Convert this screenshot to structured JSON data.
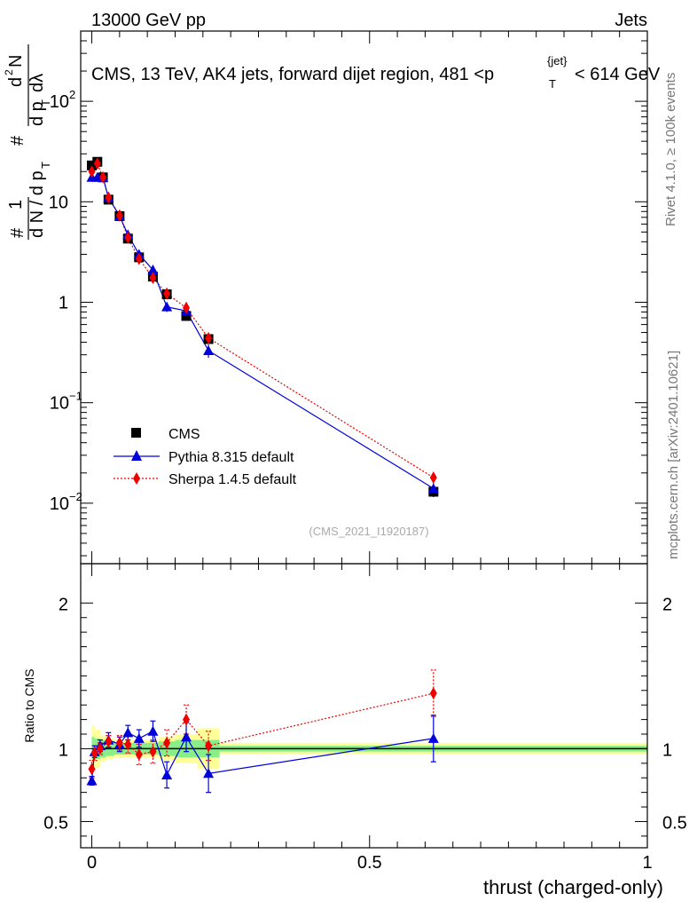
{
  "header": {
    "energy_label": "13000 GeV pp",
    "category_label": "Jets",
    "title_main": "CMS, 13 TeV, AK4 jets, forward dijet region, 481 <p",
    "title_sup": "{jet}",
    "title_sub": "T",
    "title_end": "< 614 GeV",
    "side_label_top": "Rivet 4.1.0, ≥ 100k events",
    "side_label_bottom": "mcplots.cern.ch [arXiv:2401.10621]",
    "analysis_id": "(CMS_2021_I1920187)"
  },
  "colors": {
    "cms": "#000000",
    "pythia": "#0000dd",
    "sherpa": "#ee0000",
    "band_inner": "#88ee88",
    "band_outer": "#ffff99"
  },
  "chart_data": [
    {
      "type": "scatter",
      "title": "CMS, 13 TeV, AK4 jets, forward dijet region, 481 < pT{jet} < 614 GeV",
      "ylabel": "1/dN/dpT # d2N/dpT dlambda",
      "ylabel_parts": [
        "#",
        "1",
        "d N / d p",
        "T",
        "#",
        "d p",
        "T",
        "dλ",
        "d",
        "2",
        "N"
      ],
      "yscale": "log",
      "xlim": [
        -0.02,
        1.0
      ],
      "ylim": [
        0.0025,
        500
      ],
      "y_ticks": [
        {
          "v": 0.01,
          "base": "10",
          "exp": "−2"
        },
        {
          "v": 0.1,
          "base": "10",
          "exp": "−1"
        },
        {
          "v": 1,
          "base": "1",
          "exp": ""
        },
        {
          "v": 10,
          "base": "10",
          "exp": ""
        },
        {
          "v": 100,
          "base": "10",
          "exp": "2"
        }
      ],
      "legend": {
        "position": "middle-left",
        "entries": [
          "CMS",
          "Pythia 8.315 default",
          "Sherpa 1.4.5 default"
        ]
      },
      "series": [
        {
          "name": "CMS",
          "x": [
            0.0,
            0.01,
            0.02,
            0.03,
            0.05,
            0.065,
            0.085,
            0.11,
            0.135,
            0.17,
            0.21,
            0.615
          ],
          "y": [
            23.0,
            25.0,
            17.5,
            10.5,
            7.2,
            4.3,
            2.8,
            1.8,
            1.2,
            0.73,
            0.43,
            0.013
          ],
          "yerr": [
            0.0,
            0.0,
            0.0,
            0.0,
            0.0,
            0.0,
            0.0,
            0.0,
            0.0,
            0.0,
            0.02,
            0.0015
          ]
        },
        {
          "name": "Pythia 8.315 default",
          "x": [
            0.0,
            0.01,
            0.02,
            0.03,
            0.05,
            0.065,
            0.085,
            0.11,
            0.135,
            0.17,
            0.21,
            0.615
          ],
          "y": [
            17.5,
            17.5,
            17.5,
            11.0,
            7.2,
            4.7,
            3.0,
            2.1,
            0.9,
            0.82,
            0.33,
            0.014
          ],
          "yerr": [
            1.0,
            1.0,
            1.0,
            0.6,
            0.4,
            0.3,
            0.2,
            0.15,
            0.1,
            0.08,
            0.05,
            0.002
          ]
        },
        {
          "name": "Sherpa 1.4.5 default",
          "x": [
            0.0,
            0.01,
            0.02,
            0.03,
            0.05,
            0.065,
            0.085,
            0.11,
            0.135,
            0.17,
            0.21,
            0.615
          ],
          "y": [
            20.0,
            24.0,
            17.5,
            11.0,
            7.3,
            4.4,
            2.7,
            1.75,
            1.22,
            0.88,
            0.44,
            0.018
          ],
          "yerr": [
            1.0,
            1.0,
            0.8,
            0.5,
            0.4,
            0.25,
            0.15,
            0.1,
            0.08,
            0.06,
            0.03,
            0.002
          ]
        }
      ]
    },
    {
      "type": "scatter",
      "title": "",
      "xlabel": "thrust (charged-only)",
      "ylabel": "Ratio to CMS",
      "xlim": [
        -0.02,
        1.0
      ],
      "ylim": [
        0.32,
        2.27
      ],
      "x_ticks": [
        0,
        0.5,
        1
      ],
      "x_tick_labels": [
        "0",
        "0.5",
        "1"
      ],
      "y_ticks": [
        0.5,
        1,
        2
      ],
      "y_tick_labels": [
        "0.5",
        "1",
        "2"
      ],
      "reference_band": {
        "x_edges": [
          0.0,
          0.005,
          0.015,
          0.025,
          0.04,
          0.06,
          0.075,
          0.1,
          0.12,
          0.15,
          0.19,
          0.23,
          1.0
        ],
        "inner": [
          0.08,
          0.07,
          0.06,
          0.05,
          0.04,
          0.04,
          0.04,
          0.04,
          0.05,
          0.06,
          0.06,
          0.02
        ],
        "outer": [
          0.16,
          0.13,
          0.09,
          0.07,
          0.06,
          0.06,
          0.06,
          0.06,
          0.08,
          0.1,
          0.14,
          0.04
        ]
      },
      "series": [
        {
          "name": "Pythia 8.315 default",
          "x": [
            0.0,
            0.005,
            0.015,
            0.03,
            0.05,
            0.065,
            0.085,
            0.11,
            0.135,
            0.17,
            0.21,
            0.615
          ],
          "y": [
            0.78,
            0.98,
            1.02,
            1.06,
            1.03,
            1.11,
            1.07,
            1.12,
            0.82,
            1.08,
            0.83,
            1.07
          ],
          "yerr": [
            0.03,
            0.04,
            0.04,
            0.05,
            0.05,
            0.05,
            0.06,
            0.07,
            0.09,
            0.1,
            0.13,
            0.16
          ]
        },
        {
          "name": "Sherpa 1.4.5 default",
          "x": [
            0.0,
            0.005,
            0.015,
            0.03,
            0.05,
            0.065,
            0.085,
            0.11,
            0.135,
            0.17,
            0.21,
            0.615
          ],
          "y": [
            0.86,
            0.97,
            1.0,
            1.05,
            1.04,
            1.03,
            0.96,
            0.98,
            1.04,
            1.2,
            1.02,
            1.38
          ],
          "yerr": [
            0.06,
            0.05,
            0.04,
            0.04,
            0.05,
            0.06,
            0.07,
            0.08,
            0.09,
            0.1,
            0.1,
            0.16
          ]
        }
      ]
    }
  ]
}
